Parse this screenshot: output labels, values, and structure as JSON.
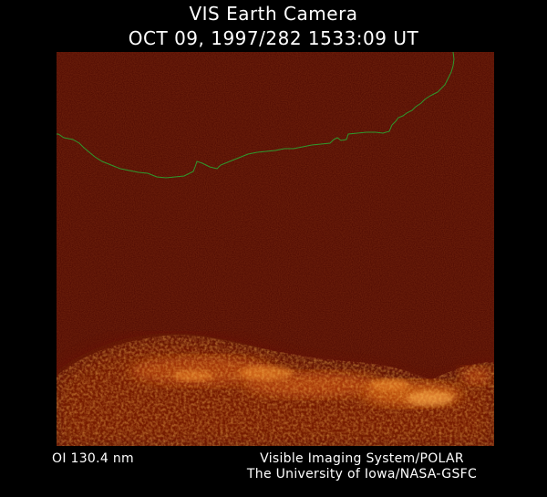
{
  "header": {
    "title": "VIS Earth Camera",
    "timestamp": "OCT 09, 1997/282 1533:09 UT"
  },
  "image": {
    "filter": "OI  130.4 nm",
    "background_color": "#4a0600",
    "limb_color": "#2e9a2e",
    "aurora_colors": [
      "#7a1a00",
      "#b84408",
      "#e07820",
      "#ffb050"
    ]
  },
  "footer": {
    "credit_line_1": "Visible Imaging System/POLAR",
    "credit_line_2": "The University of Iowa/NASA-GSFC"
  }
}
